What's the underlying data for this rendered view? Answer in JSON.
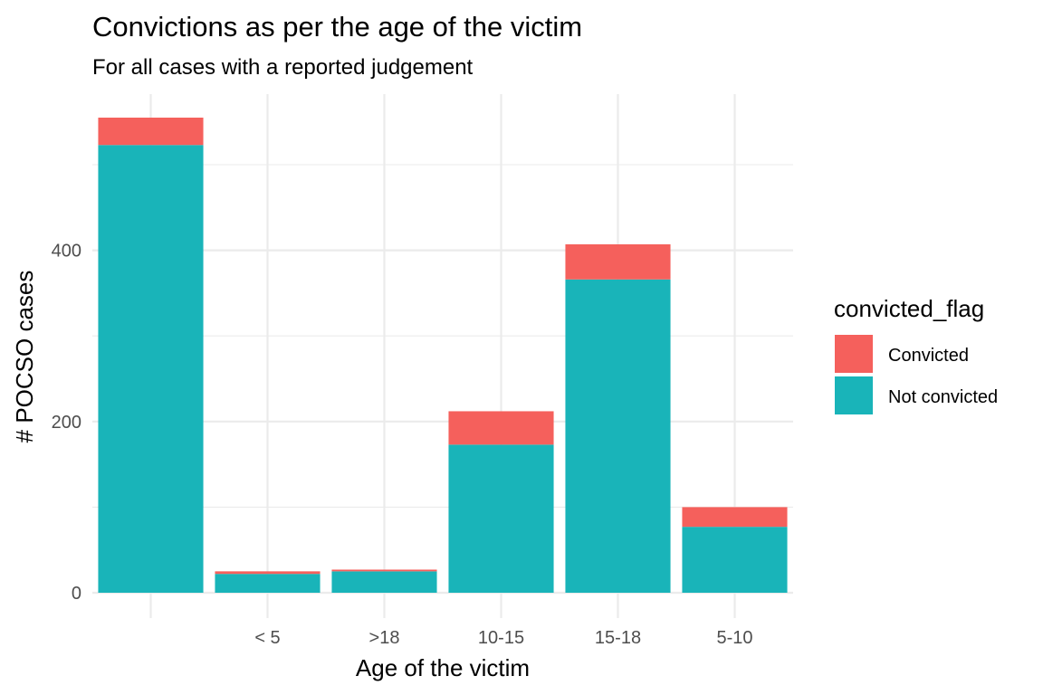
{
  "chart_data": {
    "type": "bar",
    "stacked": true,
    "title": "Convictions as per the age of the victim",
    "subtitle": "For all cases with a reported judgement",
    "xlabel": "Age of the victim",
    "ylabel": "# POCSO cases",
    "categories": [
      "",
      "< 5",
      ">18",
      "10-15",
      "15-18",
      "5-10"
    ],
    "series": [
      {
        "name": "Not convicted",
        "color": "#19B4B9",
        "values": [
          523,
          22,
          25,
          173,
          366,
          77
        ]
      },
      {
        "name": "Convicted",
        "color": "#F5605C",
        "values": [
          32,
          3,
          2,
          39,
          41,
          23
        ]
      }
    ],
    "yticks": [
      0,
      200,
      400
    ],
    "ylim": [
      0,
      580
    ],
    "grid": true,
    "legend": {
      "title": "convicted_flag",
      "position": "right",
      "entries": [
        {
          "label": "Convicted",
          "color": "#F5605C"
        },
        {
          "label": "Not convicted",
          "color": "#19B4B9"
        }
      ]
    }
  }
}
